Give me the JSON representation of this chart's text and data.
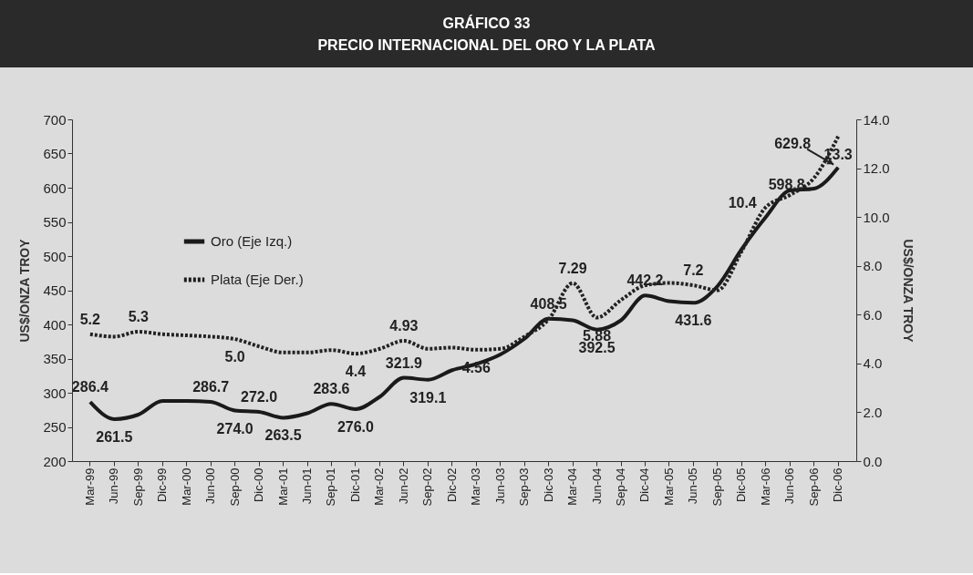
{
  "chart_data": {
    "type": "line",
    "title": "GRÁFICO 33",
    "subtitle": "PRECIO INTERNACIONAL DEL ORO Y LA PLATA",
    "ylabel": "US$/ONZA TROY",
    "y2label": "US$/ONZA TROY",
    "categories": [
      "Mar-99",
      "Jun-99",
      "Sep-99",
      "Dic-99",
      "Mar-00",
      "Jun-00",
      "Sep-00",
      "Dic-00",
      "Mar-01",
      "Jun-01",
      "Sep-01",
      "Dic-01",
      "Mar-02",
      "Jun-02",
      "Sep-02",
      "Dic-02",
      "Mar-03",
      "Jun-03",
      "Sep-03",
      "Dic-03",
      "Mar-04",
      "Jun-04",
      "Sep-04",
      "Dic-04",
      "Mar-05",
      "Jun-05",
      "Sep-05",
      "Dic-05",
      "Mar-06",
      "Jun-06",
      "Sep-06",
      "Dic-06"
    ],
    "series": [
      {
        "name": "Oro (Eje Izq.)",
        "color": "#1a1a1a",
        "line_style": "solid",
        "values": [
          286.4,
          261.5,
          268,
          288,
          288,
          286.7,
          274.0,
          272.0,
          263.5,
          270,
          283.6,
          276.0,
          294,
          321.9,
          319.1,
          333,
          342,
          356,
          379,
          408.5,
          406,
          392.5,
          406,
          442.2,
          434,
          431.6,
          456,
          510,
          557,
          596,
          598.8,
          629.8
        ],
        "value_labels": [
          "286.4",
          "261.5",
          null,
          null,
          null,
          "286.7",
          "274.0",
          "272.0",
          "263.5",
          null,
          "283.6",
          "276.0",
          null,
          "321.9",
          "319.1",
          null,
          null,
          null,
          null,
          "408.5",
          null,
          "392.5",
          null,
          "442.2",
          null,
          "431.6",
          null,
          null,
          null,
          null,
          "598.8",
          "629.8"
        ]
      },
      {
        "name": "Plata (Eje Der.)",
        "color": "#222222",
        "line_style": "dotted",
        "axis": "y2",
        "values": [
          5.2,
          5.1,
          5.3,
          5.2,
          5.15,
          5.1,
          5.0,
          4.7,
          4.45,
          4.45,
          4.55,
          4.4,
          4.6,
          4.93,
          4.6,
          4.65,
          4.56,
          4.6,
          5.1,
          5.8,
          7.29,
          5.88,
          6.6,
          7.2,
          7.3,
          7.2,
          7.0,
          8.6,
          10.4,
          10.9,
          11.6,
          13.3
        ],
        "value_labels": [
          "5.2",
          null,
          "5.3",
          null,
          null,
          null,
          "5.0",
          null,
          null,
          null,
          null,
          "4.4",
          null,
          "4.93",
          null,
          null,
          "4.56",
          null,
          null,
          null,
          "7.29",
          "5.88",
          null,
          null,
          null,
          "7.2",
          null,
          null,
          "10.4",
          null,
          null,
          "13.3"
        ]
      }
    ],
    "ylim": [
      200,
      700
    ],
    "yticks": [
      200,
      250,
      300,
      350,
      400,
      450,
      500,
      550,
      600,
      650,
      700
    ],
    "y2lim": [
      0,
      14
    ],
    "y2ticks": [
      {
        "value": 0,
        "label": "0.0"
      },
      {
        "value": 2,
        "label": "2.0"
      },
      {
        "value": 4,
        "label": "4.0"
      },
      {
        "value": 6,
        "label": "6.0"
      },
      {
        "value": 8,
        "label": "8.0"
      },
      {
        "value": 10,
        "label": "10.0"
      },
      {
        "value": 12,
        "label": "12.0"
      },
      {
        "value": 14,
        "label": "14.0"
      }
    ],
    "legend": "top left"
  }
}
